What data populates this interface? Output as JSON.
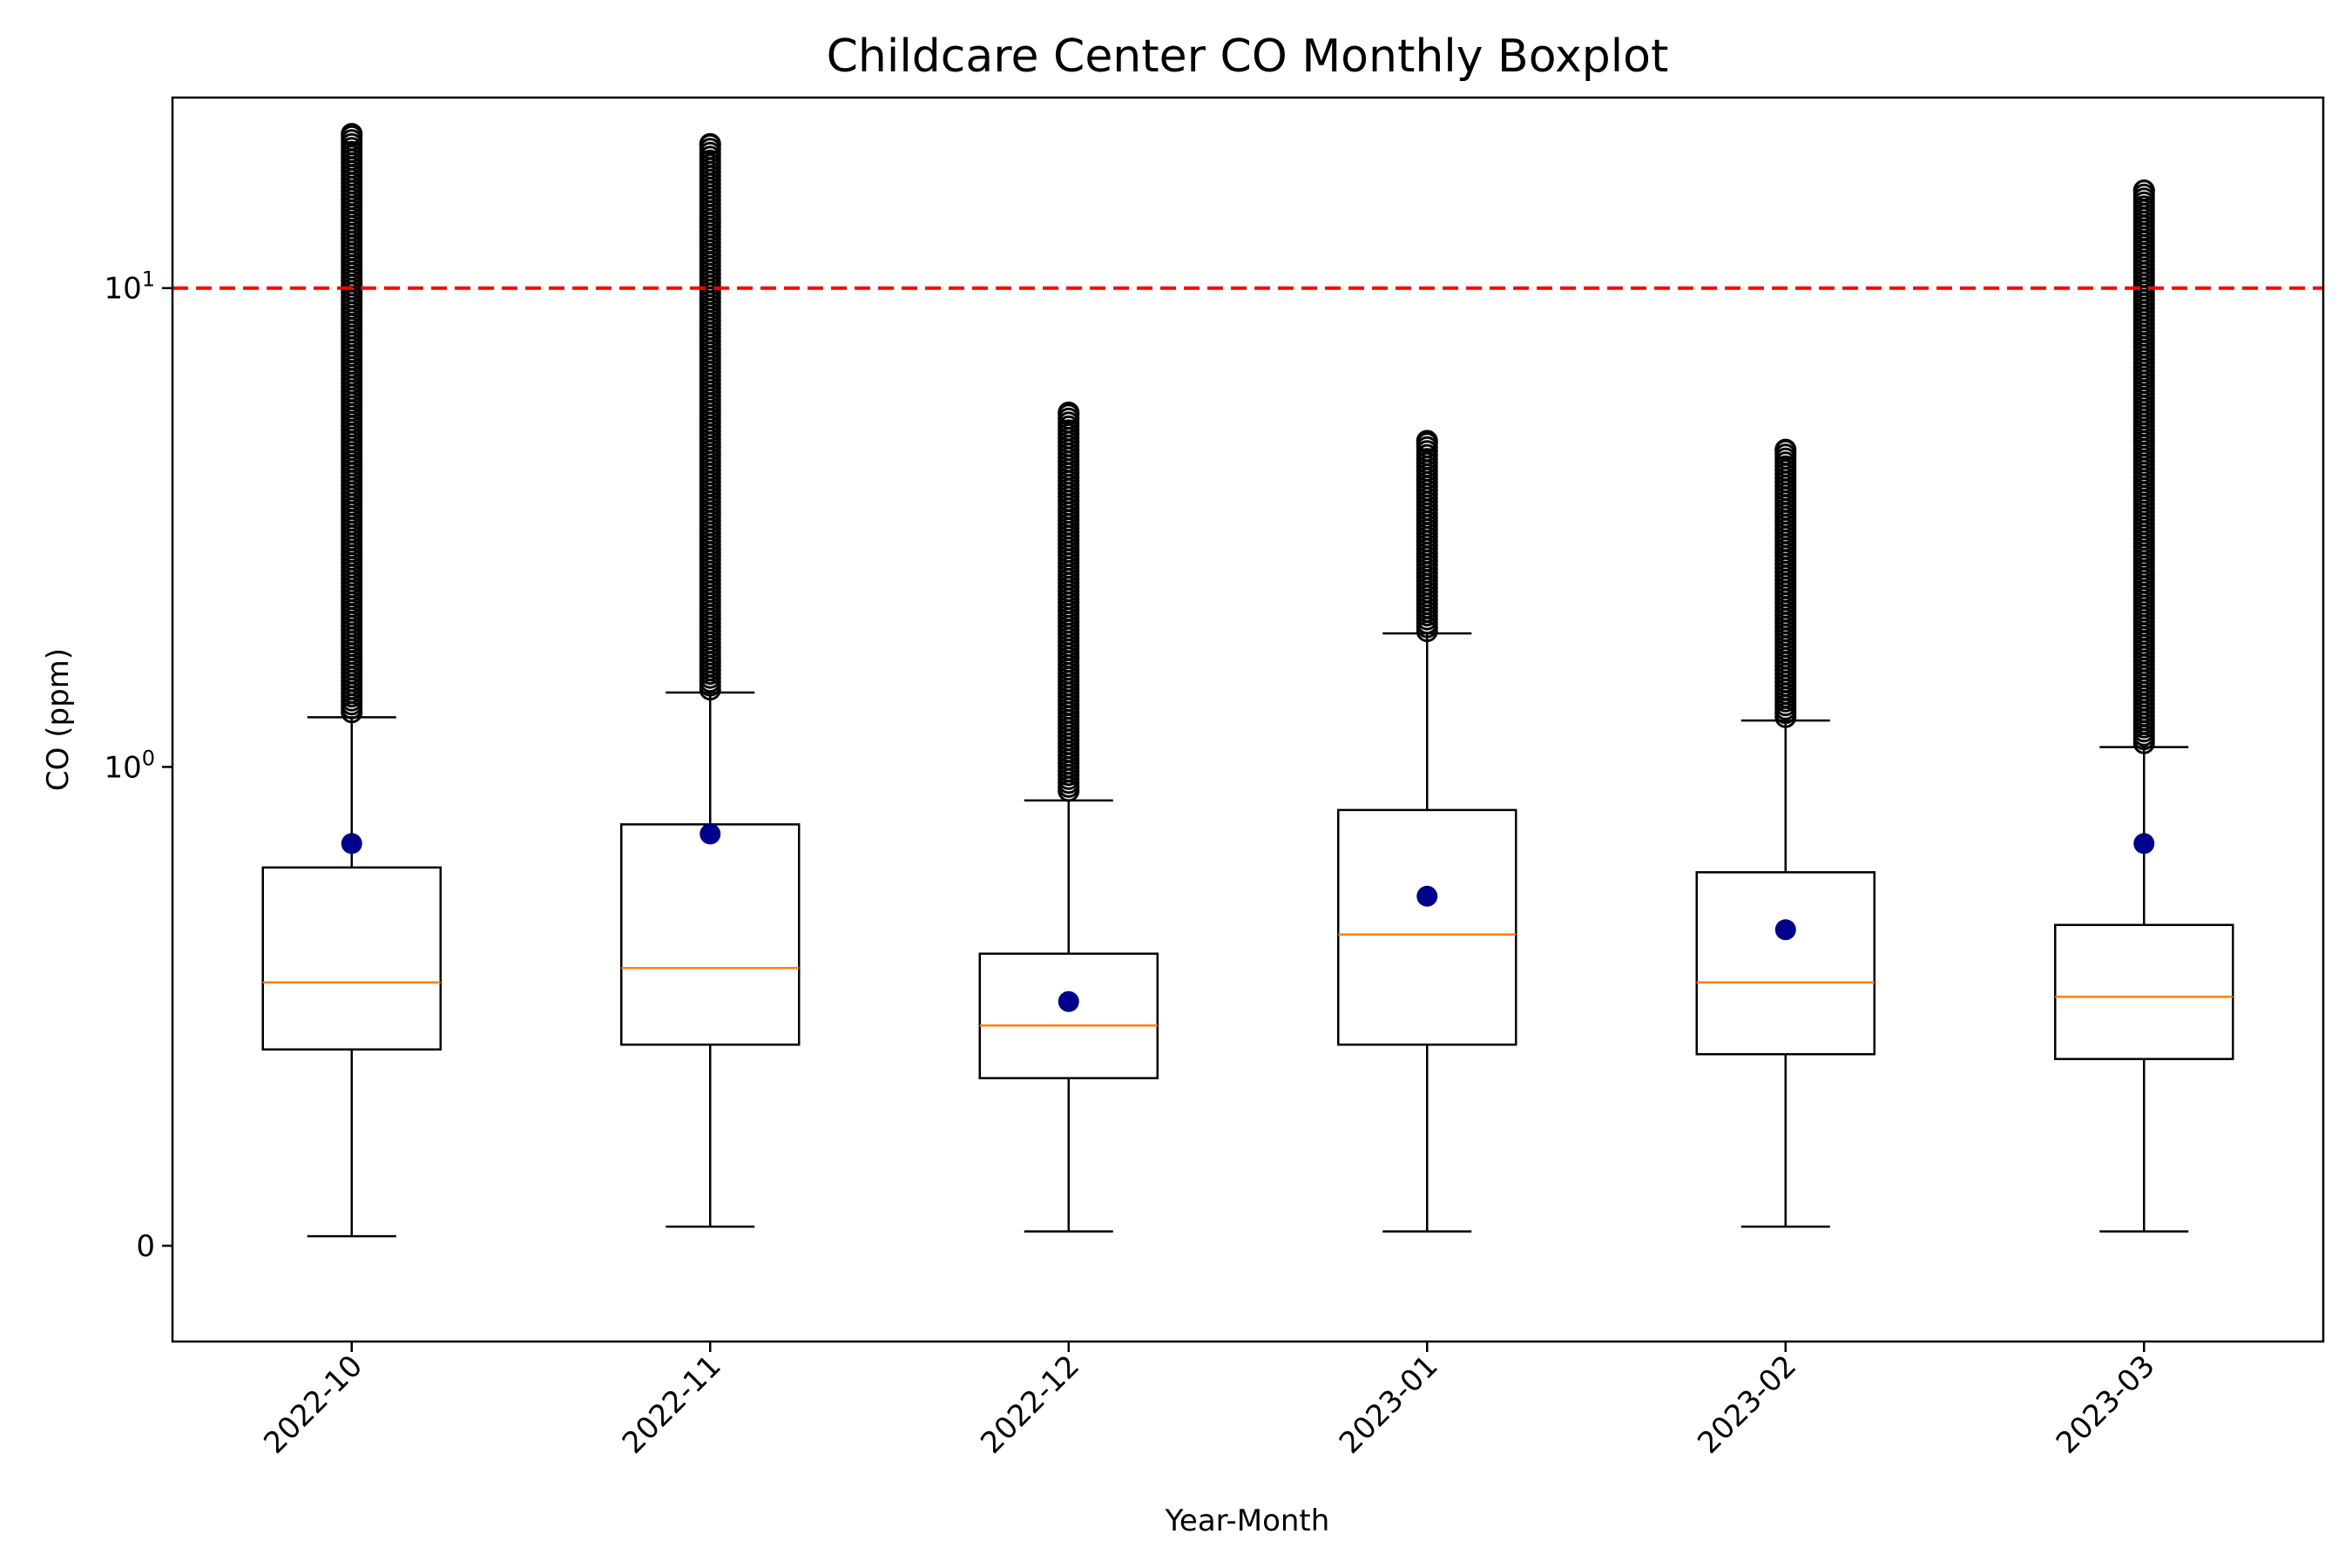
{
  "chart_data": {
    "type": "boxplot",
    "title": "Childcare Center CO Monthly Boxplot",
    "xlabel": "Year-Month",
    "ylabel": "CO (ppm)",
    "yscale": "symlog",
    "ylim": [
      -0.2,
      25
    ],
    "y_ticks": [
      {
        "value": 0,
        "label": "0"
      },
      {
        "value": 1,
        "label": "10^0"
      },
      {
        "value": 10,
        "label": "10^1"
      }
    ],
    "categories": [
      "2022-10",
      "2022-11",
      "2022-12",
      "2023-01",
      "2023-02",
      "2023-03"
    ],
    "series": [
      {
        "stats": [
          {
            "whislo": 0.02,
            "q1": 0.41,
            "med": 0.55,
            "q3": 0.79,
            "whishi": 1.27,
            "mean": 0.84,
            "flier_min": 1.3,
            "flier_max": 21.0
          },
          {
            "whislo": 0.04,
            "q1": 0.42,
            "med": 0.58,
            "q3": 0.88,
            "whishi": 1.43,
            "mean": 0.86,
            "flier_min": 1.45,
            "flier_max": 20.0
          },
          {
            "whislo": 0.03,
            "q1": 0.35,
            "med": 0.46,
            "q3": 0.61,
            "whishi": 0.93,
            "mean": 0.51,
            "flier_min": 0.95,
            "flier_max": 5.5
          },
          {
            "whislo": 0.03,
            "q1": 0.42,
            "med": 0.65,
            "q3": 0.91,
            "whishi": 1.9,
            "mean": 0.73,
            "flier_min": 1.92,
            "flier_max": 4.8
          },
          {
            "whislo": 0.04,
            "q1": 0.4,
            "med": 0.55,
            "q3": 0.78,
            "whishi": 1.25,
            "mean": 0.66,
            "flier_min": 1.27,
            "flier_max": 4.6
          },
          {
            "whislo": 0.03,
            "q1": 0.39,
            "med": 0.52,
            "q3": 0.67,
            "whishi": 1.1,
            "mean": 0.84,
            "flier_min": 1.12,
            "flier_max": 16.0
          }
        ]
      }
    ],
    "reference_line": {
      "value": 10,
      "style": "dashed"
    },
    "grid": false,
    "colors": {
      "box": "#000000",
      "median": "#ff7f0e",
      "mean_marker": "#00008b",
      "reference_line": "#ff0000",
      "flier": "#000000"
    }
  }
}
